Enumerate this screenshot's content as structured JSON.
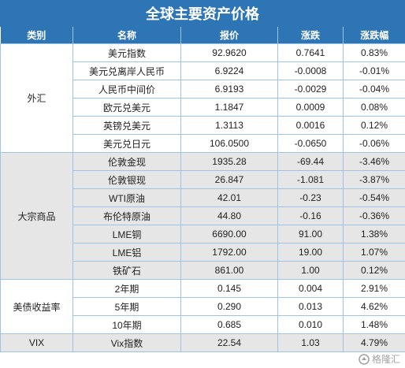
{
  "title": "全球主要资产价格",
  "headers": [
    "类别",
    "名称",
    "报价",
    "涨跌",
    "涨跌幅"
  ],
  "groups": [
    {
      "category": "外汇",
      "rows": [
        {
          "name": "美元指数",
          "price": "92.9620",
          "change": "0.7641",
          "pct": "0.83%"
        },
        {
          "name": "美元兑离岸人民币",
          "price": "6.9224",
          "change": "-0.0008",
          "pct": "-0.01%"
        },
        {
          "name": "人民币中间价",
          "price": "6.9193",
          "change": "-0.0029",
          "pct": "-0.04%"
        },
        {
          "name": "欧元兑美元",
          "price": "1.1847",
          "change": "0.0009",
          "pct": "0.08%"
        },
        {
          "name": "英镑兑美元",
          "price": "1.3113",
          "change": "0.0016",
          "pct": "0.12%"
        },
        {
          "name": "美元兑日元",
          "price": "106.0500",
          "change": "-0.0650",
          "pct": "-0.06%"
        }
      ]
    },
    {
      "category": "大宗商品",
      "rows": [
        {
          "name": "伦敦金现",
          "price": "1935.28",
          "change": "-69.44",
          "pct": "-3.46%"
        },
        {
          "name": "伦敦银现",
          "price": "26.847",
          "change": "-1.081",
          "pct": "-3.87%"
        },
        {
          "name": "WTI原油",
          "price": "42.01",
          "change": "-0.23",
          "pct": "-0.54%"
        },
        {
          "name": "布伦特原油",
          "price": "44.80",
          "change": "-0.16",
          "pct": "-0.36%"
        },
        {
          "name": "LME铜",
          "price": "6690.00",
          "change": "91.00",
          "pct": "1.38%"
        },
        {
          "name": "LME铝",
          "price": "1792.00",
          "change": "19.00",
          "pct": "1.07%"
        },
        {
          "name": "铁矿石",
          "price": "861.00",
          "change": "1.00",
          "pct": "0.12%"
        }
      ]
    },
    {
      "category": "美债收益率",
      "rows": [
        {
          "name": "2年期",
          "price": "0.145",
          "change": "0.004",
          "pct": "2.91%"
        },
        {
          "name": "5年期",
          "price": "0.290",
          "change": "0.013",
          "pct": "4.62%"
        },
        {
          "name": "10年期",
          "price": "0.685",
          "change": "0.010",
          "pct": "1.48%"
        }
      ]
    },
    {
      "category": "VIX",
      "rows": [
        {
          "name": "Vix指数",
          "price": "22.54",
          "change": "1.03",
          "pct": "4.79%"
        }
      ]
    }
  ],
  "watermark": "格隆汇"
}
